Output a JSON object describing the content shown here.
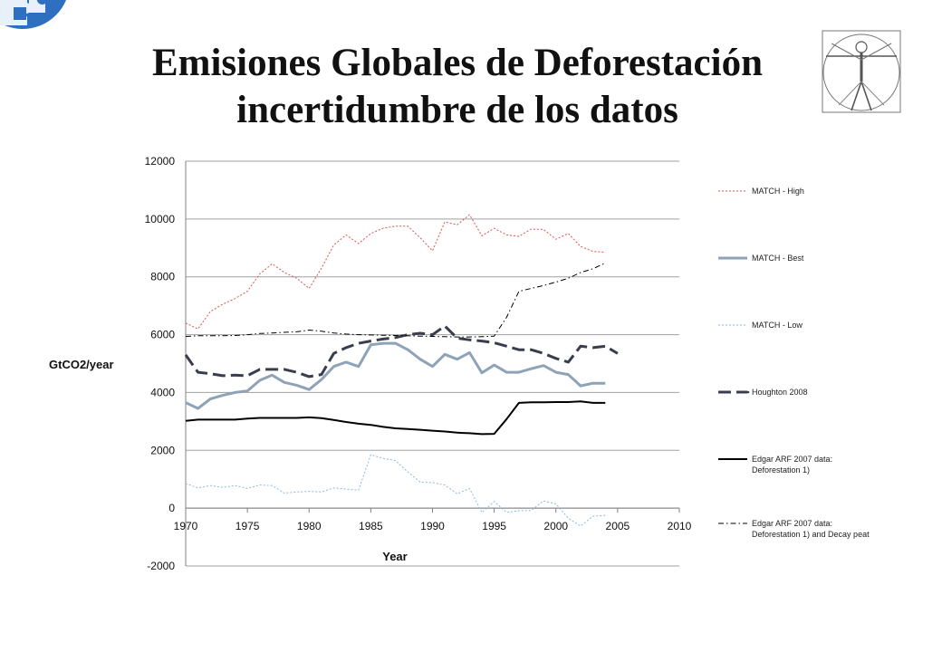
{
  "slide": {
    "title_line1": "Emisiones Globales de Deforestación",
    "title_line2": "incertidumbre de los datos"
  },
  "logo_icon": "blue-puzzle-globe-icon",
  "decor_icon": "vitruvian-man-icon",
  "chart_data": {
    "type": "line",
    "xlabel": "Year",
    "ylabel": "GtCO2/year",
    "xlim": [
      1970,
      2010
    ],
    "ylim": [
      -2000,
      12000
    ],
    "xticks": [
      1970,
      1975,
      1980,
      1985,
      1990,
      1995,
      2000,
      2005,
      2010
    ],
    "yticks": [
      -2000,
      0,
      2000,
      4000,
      6000,
      8000,
      10000,
      12000
    ],
    "grid": "horizontal",
    "legend_position": "right",
    "series": [
      {
        "name": "MATCH - High",
        "color": "#d9534f",
        "style": "dotted",
        "x": [
          1970,
          1971,
          1972,
          1973,
          1974,
          1975,
          1976,
          1977,
          1978,
          1979,
          1980,
          1981,
          1982,
          1983,
          1984,
          1985,
          1986,
          1987,
          1988,
          1989,
          1990,
          1991,
          1992,
          1993,
          1994,
          1995,
          1996,
          1997,
          1998,
          1999,
          2000,
          2001,
          2002,
          2003,
          2004
        ],
        "y": [
          6400,
          6200,
          6800,
          7050,
          7250,
          7500,
          8100,
          8450,
          8150,
          7950,
          7600,
          8300,
          9100,
          9450,
          9150,
          9500,
          9680,
          9750,
          9750,
          9350,
          8900,
          9900,
          9800,
          10150,
          9420,
          9680,
          9450,
          9400,
          9650,
          9640,
          9300,
          9500,
          9050,
          8880,
          8850
        ]
      },
      {
        "name": "MATCH - Best",
        "color": "#8fa3b8",
        "style": "solid-thick",
        "x": [
          1970,
          1971,
          1972,
          1973,
          1974,
          1975,
          1976,
          1977,
          1978,
          1979,
          1980,
          1981,
          1982,
          1983,
          1984,
          1985,
          1986,
          1987,
          1988,
          1989,
          1990,
          1991,
          1992,
          1993,
          1994,
          1995,
          1996,
          1997,
          1998,
          1999,
          2000,
          2001,
          2002,
          2003,
          2004
        ],
        "y": [
          3650,
          3450,
          3780,
          3900,
          4000,
          4050,
          4420,
          4600,
          4350,
          4250,
          4100,
          4450,
          4900,
          5050,
          4900,
          5650,
          5700,
          5700,
          5480,
          5150,
          4900,
          5320,
          5150,
          5380,
          4680,
          4950,
          4700,
          4700,
          4820,
          4930,
          4700,
          4620,
          4230,
          4320,
          4320
        ]
      },
      {
        "name": "MATCH - Low",
        "color": "#8cb8d9",
        "style": "dotted",
        "x": [
          1970,
          1971,
          1972,
          1973,
          1974,
          1975,
          1976,
          1977,
          1978,
          1979,
          1980,
          1981,
          1982,
          1983,
          1984,
          1985,
          1986,
          1987,
          1988,
          1989,
          1990,
          1991,
          1992,
          1993,
          1994,
          1995,
          1996,
          1997,
          1998,
          1999,
          2000,
          2001,
          2002,
          2003,
          2004
        ],
        "y": [
          850,
          700,
          780,
          720,
          780,
          680,
          800,
          780,
          520,
          560,
          580,
          560,
          700,
          660,
          620,
          1850,
          1720,
          1650,
          1250,
          900,
          880,
          800,
          500,
          680,
          -150,
          230,
          -150,
          -90,
          -80,
          250,
          150,
          -350,
          -620,
          -280,
          -250
        ]
      },
      {
        "name": "Houghton 2008",
        "color": "#3a3d4d",
        "style": "dashed-thick",
        "x": [
          1970,
          1971,
          1972,
          1973,
          1974,
          1975,
          1976,
          1977,
          1978,
          1979,
          1980,
          1981,
          1982,
          1983,
          1984,
          1985,
          1986,
          1987,
          1988,
          1989,
          1990,
          1991,
          1992,
          1993,
          1994,
          1995,
          1996,
          1997,
          1998,
          1999,
          2000,
          2001,
          2002,
          2003,
          2004,
          2005
        ],
        "y": [
          5300,
          4700,
          4650,
          4580,
          4600,
          4580,
          4800,
          4800,
          4800,
          4700,
          4550,
          4620,
          5350,
          5550,
          5700,
          5780,
          5850,
          5900,
          6000,
          6050,
          6000,
          6300,
          5880,
          5820,
          5780,
          5720,
          5600,
          5480,
          5480,
          5350,
          5180,
          5050,
          5600,
          5550,
          5600,
          5350
        ]
      },
      {
        "name": "Edgar ARF 2007 data: Deforestation 1)",
        "color": "#000000",
        "style": "solid",
        "x": [
          1970,
          1971,
          1972,
          1973,
          1974,
          1975,
          1976,
          1977,
          1978,
          1979,
          1980,
          1981,
          1982,
          1983,
          1984,
          1985,
          1986,
          1987,
          1988,
          1989,
          1990,
          1991,
          1992,
          1993,
          1994,
          1995,
          1996,
          1997,
          1998,
          1999,
          2000,
          2001,
          2002,
          2003,
          2004
        ],
        "y": [
          3020,
          3060,
          3060,
          3060,
          3060,
          3100,
          3120,
          3120,
          3120,
          3120,
          3140,
          3110,
          3050,
          2980,
          2920,
          2880,
          2810,
          2760,
          2740,
          2710,
          2680,
          2650,
          2610,
          2590,
          2560,
          2570,
          3080,
          3640,
          3660,
          3660,
          3670,
          3670,
          3690,
          3640,
          3640
        ]
      },
      {
        "name": "Edgar ARF 2007 data: Deforestation 1) and Decay peat",
        "color": "#000000",
        "style": "dash-dot",
        "x": [
          1970,
          1971,
          1972,
          1973,
          1974,
          1975,
          1976,
          1977,
          1978,
          1979,
          1980,
          1981,
          1982,
          1983,
          1984,
          1985,
          1986,
          1987,
          1988,
          1989,
          1990,
          1991,
          1992,
          1993,
          1994,
          1995,
          1996,
          1997,
          1998,
          1999,
          2000,
          2001,
          2002,
          2003,
          2004
        ],
        "y": [
          5940,
          5960,
          5960,
          5960,
          5970,
          6000,
          6040,
          6060,
          6080,
          6100,
          6160,
          6120,
          6060,
          6020,
          6000,
          5990,
          5980,
          5970,
          5960,
          5950,
          5940,
          5930,
          5920,
          5920,
          5930,
          5950,
          6600,
          7500,
          7600,
          7700,
          7820,
          7950,
          8150,
          8280,
          8480
        ]
      }
    ]
  }
}
